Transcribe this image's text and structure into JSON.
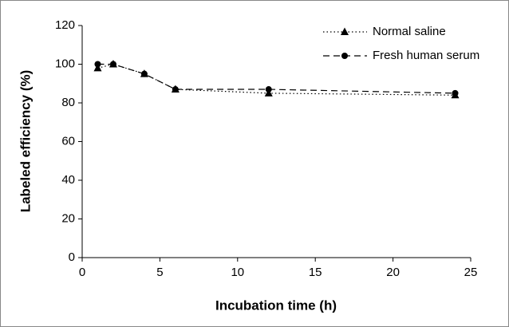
{
  "chart_data": {
    "type": "line",
    "x_label": "Incubation time (h)",
    "y_label": "Labeled efficiency (%)",
    "x": [
      1,
      2,
      4,
      6,
      12,
      24
    ],
    "series": [
      {
        "name": "Normal saline",
        "color": "#000000",
        "linestyle": "dotted",
        "marker": "triangle",
        "values": [
          98,
          100,
          95,
          87,
          85,
          84
        ]
      },
      {
        "name": "Fresh human serum",
        "color": "#000000",
        "linestyle": "dashed",
        "marker": "circle",
        "values": [
          100,
          100,
          95,
          87,
          87,
          85
        ]
      }
    ],
    "xlim": [
      0,
      25
    ],
    "xticks": [
      0,
      5,
      10,
      15,
      20,
      25
    ],
    "ylim": [
      0,
      120
    ],
    "yticks": [
      0,
      20,
      40,
      60,
      80,
      100,
      120
    ],
    "legend": "top-right"
  }
}
